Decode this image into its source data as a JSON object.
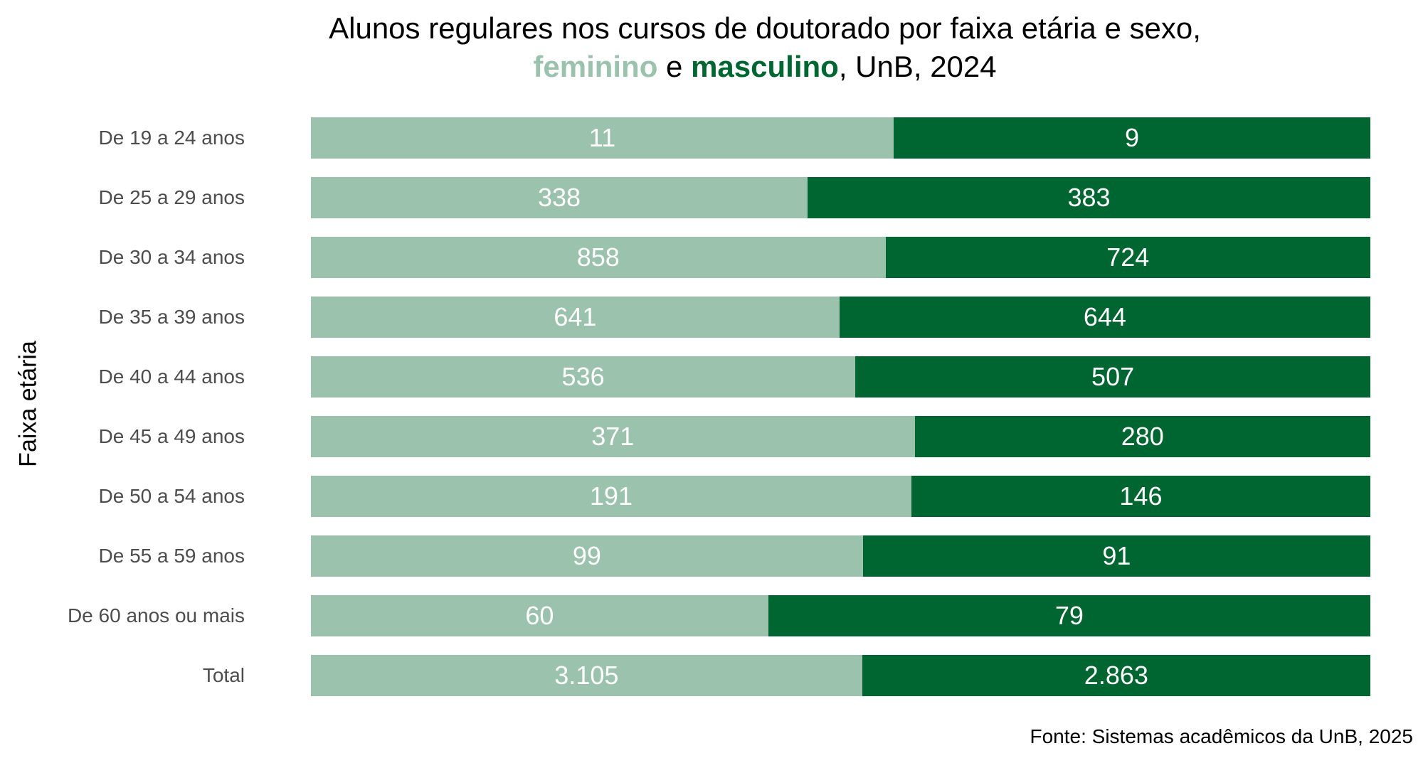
{
  "title": {
    "line1": "Alunos regulares nos cursos de doutorado por faixa etária e sexo,",
    "female_word": "feminino",
    "connector": " e ",
    "male_word": "masculino",
    "suffix": ", UnB, 2024"
  },
  "source": "Fonte: Sistemas acadêmicos da UnB, 2025",
  "chart_data": {
    "type": "bar",
    "orientation": "horizontal",
    "stacking": "percent",
    "title": "Alunos regulares nos cursos de doutorado por faixa etária e sexo, feminino e masculino, UnB, 2024",
    "xlabel": "",
    "ylabel": "Faixa etária",
    "grid": false,
    "legend": "none",
    "categories": [
      "De 19 a 24 anos",
      "De 25 a 29 anos",
      "De 30 a 34 anos",
      "De 35 a 39 anos",
      "De 40 a 44 anos",
      "De 45 a 49 anos",
      "De 50 a 54 anos",
      "De 55 a 59 anos",
      "De 60 anos ou mais",
      "Total"
    ],
    "series": [
      {
        "values": [
          11,
          338,
          858,
          641,
          536,
          371,
          191,
          99,
          60,
          3105
        ],
        "labels": [
          "11",
          "338",
          "858",
          "641",
          "536",
          "371",
          "191",
          "99",
          "60",
          "3.105"
        ],
        "color": "#9bc2ad"
      },
      {
        "values": [
          9,
          383,
          724,
          644,
          507,
          280,
          146,
          91,
          79,
          2863
        ],
        "labels": [
          "9",
          "383",
          "724",
          "644",
          "507",
          "280",
          "146",
          "91",
          "79",
          "2.863"
        ],
        "color": "#006631"
      }
    ]
  },
  "colors": {
    "feminino": "#9bc2ad",
    "masculino": "#006631",
    "label_text": "#ffffff",
    "category_text": "#4d4d4d"
  }
}
